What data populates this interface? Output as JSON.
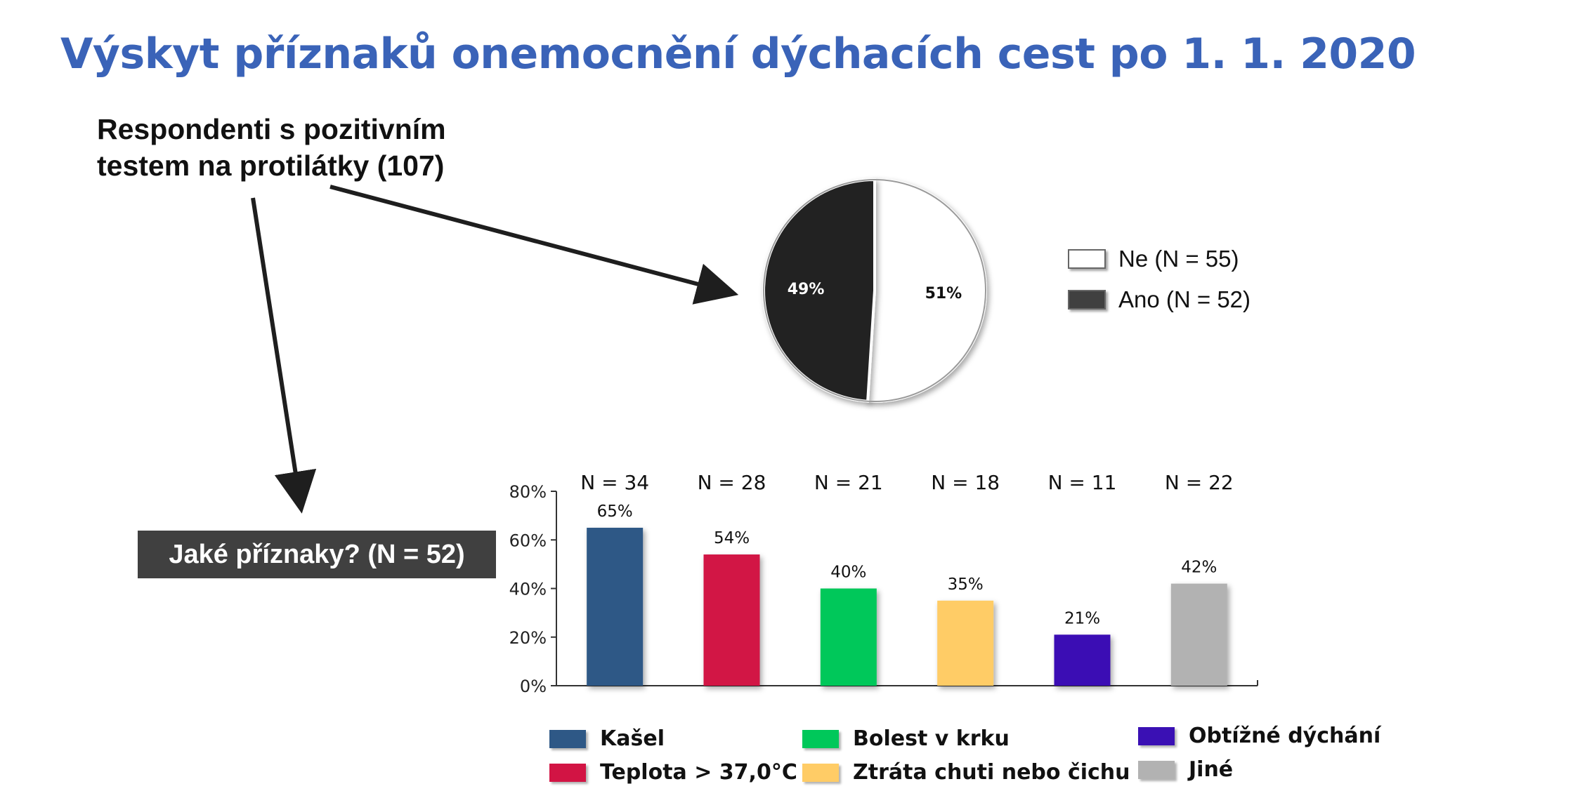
{
  "title": "Výskyt příznaků onemocnění dýchacích cest po 1. 1. 2020",
  "respondents": {
    "line1": "Respondenti s pozitivním",
    "line2": "testem na protilátky (107)"
  },
  "question": "Jaké příznaky? (N = 52)",
  "chart_data": [
    {
      "type": "pie",
      "slices": [
        {
          "label": "Ne (N = 55)",
          "value": 51,
          "value_label": "51%",
          "color": "#ffffff"
        },
        {
          "label": "Ano (N = 52)",
          "value": 49,
          "value_label": "49%",
          "color": "#232323"
        }
      ]
    },
    {
      "type": "bar",
      "categories": [
        "Kašel",
        "Teplota > 37,0°C",
        "Bolest v krku",
        "Ztráta chuti nebo čichu",
        "Obtížné dýchání",
        "Jiné"
      ],
      "values": [
        65,
        54,
        40,
        35,
        21,
        42
      ],
      "value_labels": [
        "65%",
        "54%",
        "40%",
        "35%",
        "21%",
        "42%"
      ],
      "n_labels": [
        "N = 34",
        "N = 28",
        "N = 21",
        "N = 18",
        "N = 11",
        "N = 22"
      ],
      "colors": [
        "#2e5886",
        "#d21444",
        "#00c85a",
        "#ffcc66",
        "#3a10b4",
        "#b2b2b2"
      ],
      "ylim": [
        0,
        80
      ],
      "yticks": [
        "0%",
        "20%",
        "40%",
        "60%",
        "80%"
      ],
      "legend": "bottom"
    }
  ]
}
